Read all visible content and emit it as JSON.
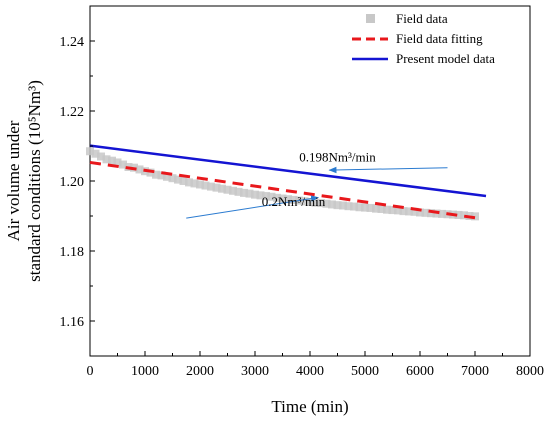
{
  "chart_data": {
    "type": "line",
    "xlabel": "Time (min)",
    "ylabel_line1": "Air volume under",
    "ylabel_line2": "standard conditions (10⁵Nm³)",
    "xlim": [
      0,
      8000
    ],
    "ylim": [
      1.15,
      1.25
    ],
    "x_ticks": [
      0,
      1000,
      2000,
      3000,
      4000,
      5000,
      6000,
      7000,
      8000
    ],
    "y_ticks": [
      1.16,
      1.18,
      1.2,
      1.22,
      1.24
    ],
    "x_tick_labels": [
      "0",
      "1000",
      "2000",
      "3000",
      "4000",
      "5000",
      "6000",
      "7000",
      "8000"
    ],
    "y_tick_labels": [
      "1.16",
      "1.18",
      "1.20",
      "1.22",
      "1.24"
    ],
    "grid": false,
    "legend_position": "top-right",
    "series": [
      {
        "name": "Field data",
        "style": "scatter-square",
        "color": "#c8c8c8",
        "x": [
          0,
          100,
          200,
          300,
          400,
          500,
          600,
          700,
          800,
          900,
          1000,
          1100,
          1200,
          1300,
          1400,
          1500,
          1600,
          1700,
          1800,
          1900,
          2000,
          2100,
          2200,
          2300,
          2400,
          2500,
          2600,
          2700,
          2800,
          2900,
          3000,
          3100,
          3200,
          3300,
          3400,
          3500,
          3600,
          3700,
          3800,
          3900,
          4000,
          4100,
          4200,
          4300,
          4400,
          4500,
          4600,
          4700,
          4800,
          4900,
          5000,
          5100,
          5200,
          5300,
          5400,
          5500,
          5600,
          5700,
          5800,
          5900,
          6000,
          6100,
          6200,
          6300,
          6400,
          6500,
          6600,
          6700,
          6800,
          6900,
          7000
        ],
        "y": [
          1.2085,
          1.2078,
          1.207,
          1.2062,
          1.2058,
          1.2053,
          1.2047,
          1.204,
          1.2038,
          1.2033,
          1.2028,
          1.2024,
          1.2018,
          1.2016,
          1.2012,
          1.2008,
          1.2004,
          1.2,
          1.1996,
          1.1993,
          1.199,
          1.1987,
          1.1984,
          1.1981,
          1.1978,
          1.1975,
          1.1972,
          1.1969,
          1.1966,
          1.1964,
          1.1961,
          1.1959,
          1.1957,
          1.1955,
          1.1952,
          1.195,
          1.1948,
          1.1946,
          1.1944,
          1.1942,
          1.194,
          1.1938,
          1.1937,
          1.1935,
          1.1933,
          1.1931,
          1.193,
          1.1928,
          1.1927,
          1.1925,
          1.1924,
          1.1923,
          1.1921,
          1.192,
          1.1918,
          1.1917,
          1.1916,
          1.1914,
          1.1913,
          1.1912,
          1.191,
          1.1909,
          1.1908,
          1.1907,
          1.1906,
          1.1905,
          1.1904,
          1.1903,
          1.1902,
          1.19,
          1.1899
        ]
      },
      {
        "name": "Field data fitting",
        "style": "dashed",
        "color": "#e8181c",
        "x": [
          0,
          7000
        ],
        "y": [
          1.2053,
          1.1895
        ]
      },
      {
        "name": "Present model data",
        "style": "solid",
        "color": "#1414d2",
        "x": [
          0,
          7200
        ],
        "y": [
          1.2101,
          1.1957
        ]
      }
    ],
    "annotations": [
      {
        "text": "0.198Nm³/min",
        "label_at": [
          4500,
          1.2056
        ],
        "arrow_from": [
          6500,
          1.2038
        ],
        "arrow_to": [
          4350,
          1.2031
        ]
      },
      {
        "text": "0.2Nm³/min",
        "label_at": [
          3700,
          1.1928
        ],
        "arrow_from": [
          1750,
          1.1894
        ],
        "arrow_to": [
          4150,
          1.1953
        ]
      }
    ]
  }
}
